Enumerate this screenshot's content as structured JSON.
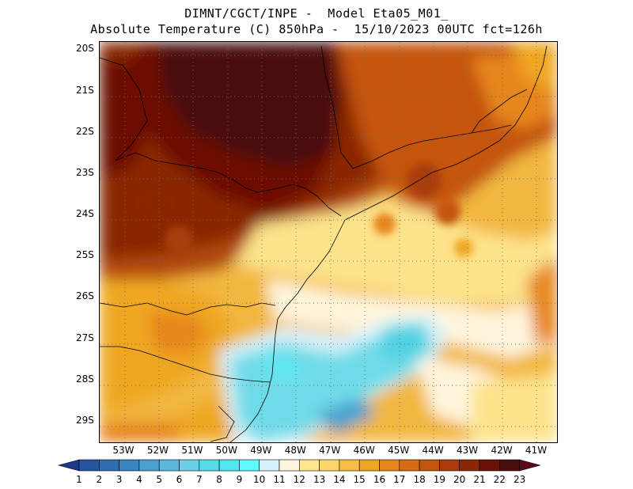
{
  "title": {
    "line1": "DIMNT/CGCT/INPE -  Model Eta05_M01_",
    "line2": "Absolute Temperature (C) 850hPa -  15/10/2023 00UTC fct=126h"
  },
  "axes": {
    "lat_labels": [
      "20S",
      "21S",
      "22S",
      "23S",
      "24S",
      "25S",
      "26S",
      "27S",
      "28S",
      "29S"
    ],
    "lon_labels": [
      "53W",
      "52W",
      "51W",
      "50W",
      "49W",
      "48W",
      "47W",
      "46W",
      "45W",
      "44W",
      "43W",
      "42W",
      "41W"
    ],
    "lat_values": [
      -20,
      -21,
      -22,
      -23,
      -24,
      -25,
      -26,
      -27,
      -28,
      -29
    ],
    "lon_values": [
      -53,
      -52,
      -51,
      -50,
      -49,
      -48,
      -47,
      -46,
      -45,
      -44,
      -43,
      -42,
      -41
    ],
    "lat_range": [
      -29.5,
      -19.8
    ],
    "lon_range": [
      -53.7,
      -40.4
    ]
  },
  "colorbar": {
    "labels": [
      "1",
      "2",
      "3",
      "4",
      "5",
      "6",
      "7",
      "8",
      "9",
      "10",
      "11",
      "12",
      "13",
      "14",
      "15",
      "16",
      "17",
      "18",
      "19",
      "20",
      "21",
      "22",
      "23"
    ],
    "colors": [
      "#1c3a8a",
      "#25559e",
      "#2f6eb0",
      "#3a86c0",
      "#4aa0cf",
      "#5ab8db",
      "#6dcfe6",
      "#57dbe7",
      "#4fe8f0",
      "#5ff8fb",
      "#d7f3fb",
      "#fff5dc",
      "#ffe58c",
      "#fcd66a",
      "#f6c045",
      "#efa722",
      "#e7861a",
      "#d76a12",
      "#c5540c",
      "#a93c08",
      "#8a2806",
      "#6c1106",
      "#4a0e10",
      "#5b0a1e"
    ]
  },
  "map": {
    "field": "Absolute Temperature (C) 850hPa",
    "colors": {
      "ocean_cold": "#5fe3ec",
      "ocean_cool": "#d8f2fb",
      "warm_coast": "#fde38a",
      "interior_hot": "#6c1106"
    }
  }
}
